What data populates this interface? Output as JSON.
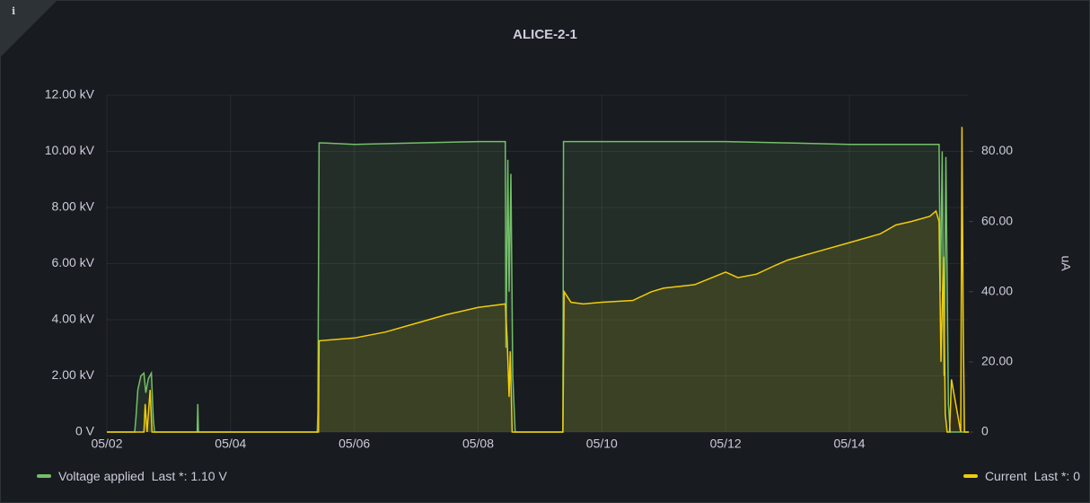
{
  "chart_data": {
    "type": "line",
    "title": "ALICE-2-1",
    "info": "i",
    "y2label": "uA",
    "xlim": [
      2,
      15.93
    ],
    "xticks": [
      {
        "value": 2,
        "label": "05/02"
      },
      {
        "value": 4,
        "label": "05/04"
      },
      {
        "value": 6,
        "label": "05/06"
      },
      {
        "value": 8,
        "label": "05/08"
      },
      {
        "value": 10,
        "label": "05/10"
      },
      {
        "value": 12,
        "label": "05/12"
      },
      {
        "value": 14,
        "label": "05/14"
      }
    ],
    "ylim": [
      0,
      12000
    ],
    "yticks": [
      {
        "value": 0,
        "label": "0 V"
      },
      {
        "value": 2000,
        "label": "2.00 kV"
      },
      {
        "value": 4000,
        "label": "4.00 kV"
      },
      {
        "value": 6000,
        "label": "6.00 kV"
      },
      {
        "value": 8000,
        "label": "8.00 kV"
      },
      {
        "value": 10000,
        "label": "10.00 kV"
      },
      {
        "value": 12000,
        "label": "12.00 kV"
      }
    ],
    "y2lim": [
      0,
      96
    ],
    "y2ticks": [
      0,
      {
        "value": 20,
        "label": "20.00"
      },
      {
        "value": 40,
        "label": "40.00"
      },
      {
        "value": 60,
        "label": "60.00"
      },
      {
        "value": 80,
        "label": "80.00"
      }
    ],
    "grid": true,
    "series": [
      {
        "name": "Voltage applied",
        "legend_value": "Last *: 1.10 V",
        "color": "#73bf69",
        "axis": "y",
        "x": [
          2.0,
          2.45,
          2.47,
          2.5,
          2.55,
          2.6,
          2.63,
          2.67,
          2.72,
          2.75,
          2.77,
          3.46,
          3.47,
          3.48,
          5.4,
          5.41,
          5.43,
          5.5,
          6.0,
          7.0,
          8.0,
          8.44,
          8.45,
          8.48,
          8.5,
          8.53,
          8.56,
          8.6,
          9.37,
          9.38,
          10.0,
          12.0,
          13.0,
          14.0,
          15.15,
          15.45,
          15.47,
          15.5,
          15.53,
          15.56,
          15.6,
          15.63,
          15.93
        ],
        "values": [
          0,
          0,
          500,
          1500,
          2000,
          2100,
          1400,
          1900,
          2100,
          500,
          0,
          0,
          1000,
          0,
          0,
          700,
          10300,
          10300,
          10250,
          10300,
          10350,
          10350,
          3000,
          9700,
          5000,
          9200,
          2000,
          0,
          0,
          10350,
          10350,
          10350,
          10300,
          10250,
          10250,
          10250,
          5000,
          10000,
          2000,
          9800,
          1000,
          0,
          0
        ]
      },
      {
        "name": "Current",
        "legend_value": "Last *: 0",
        "color": "#f2cc0c",
        "axis": "y2",
        "x": [
          2.0,
          2.6,
          2.62,
          2.65,
          2.7,
          2.73,
          5.42,
          5.43,
          6.0,
          6.5,
          7.0,
          7.5,
          8.0,
          8.44,
          8.47,
          8.5,
          8.52,
          8.55,
          9.37,
          9.39,
          9.5,
          9.7,
          10.0,
          10.5,
          10.8,
          11.0,
          11.5,
          12.0,
          12.2,
          12.5,
          12.8,
          13.0,
          13.5,
          14.0,
          14.5,
          14.75,
          15.0,
          15.3,
          15.4,
          15.45,
          15.48,
          15.52,
          15.55,
          15.58,
          15.62,
          15.65,
          15.8,
          15.82,
          15.84,
          15.86,
          15.93
        ],
        "values": [
          0,
          0,
          8,
          0,
          12,
          0,
          0,
          26,
          26.8,
          28.5,
          31,
          33.5,
          35.5,
          36.5,
          26,
          10,
          23,
          0,
          0,
          40,
          37,
          36.5,
          37,
          37.5,
          40,
          41,
          42,
          45.6,
          44,
          45,
          47.5,
          49,
          51.5,
          54,
          56.5,
          59,
          60,
          61.5,
          63,
          60,
          20,
          50,
          5,
          0,
          0,
          15,
          0,
          87,
          30,
          0,
          0
        ]
      }
    ]
  }
}
